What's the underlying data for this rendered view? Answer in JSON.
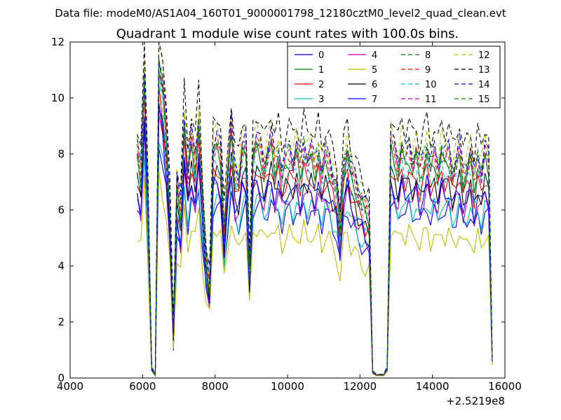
{
  "chart_data": {
    "type": "line",
    "suptitle": "Data file: modeM0/AS1A04_160T01_9000001798_12180cztM0_level2_quad_clean.evt",
    "title": "Quadrant 1 module wise count rates with 100.0s bins.",
    "xlabel": "",
    "ylabel": "",
    "x_offset_label": "+2.5219e8",
    "xlim": [
      4000,
      16000
    ],
    "ylim": [
      0,
      12
    ],
    "x_ticks": [
      4000,
      6000,
      8000,
      10000,
      12000,
      14000,
      16000
    ],
    "x_tick_labels": [
      "4000",
      "6000",
      "8000",
      "10000",
      "12000",
      "14000",
      "16000"
    ],
    "y_ticks": [
      0,
      2,
      4,
      6,
      8,
      10,
      12
    ],
    "y_tick_labels": [
      "0",
      "2",
      "4",
      "6",
      "8",
      "10",
      "12"
    ],
    "grid": false,
    "legend_position": "top-right",
    "legend_columns": 4,
    "x": [
      5850,
      5950,
      6050,
      6150,
      6250,
      6350,
      6450,
      6550,
      6650,
      6750,
      6850,
      6950,
      7050,
      7150,
      7250,
      7350,
      7450,
      7550,
      7650,
      7750,
      7850,
      7950,
      8050,
      8150,
      8250,
      8350,
      8450,
      8550,
      8650,
      8750,
      8850,
      8950,
      9050,
      9150,
      9250,
      9350,
      9450,
      9550,
      9650,
      9750,
      9850,
      9950,
      10050,
      10150,
      10250,
      10350,
      10450,
      10550,
      10650,
      10750,
      10850,
      10950,
      11050,
      11150,
      11250,
      11350,
      11450,
      11550,
      11650,
      11750,
      11850,
      11950,
      12050,
      12150,
      12250,
      12350,
      12450,
      12550,
      12650,
      12750,
      12850,
      12950,
      13050,
      13150,
      13250,
      13350,
      13450,
      13550,
      13650,
      13750,
      13850,
      13950,
      14050,
      14150,
      14250,
      14350,
      14450,
      14550,
      14650,
      14750,
      14850,
      14950,
      15050,
      15150,
      15250,
      15350,
      15450,
      15550,
      15650
    ],
    "base_profile": [
      6.8,
      6.2,
      9.2,
      5.5,
      0.3,
      0.1,
      9.6,
      8.8,
      7.5,
      5.2,
      1.5,
      5.8,
      5.0,
      7.8,
      6.2,
      7.2,
      6.5,
      7.8,
      5.5,
      3.6,
      2.8,
      6.9,
      7.1,
      6.8,
      4.5,
      6.2,
      7.5,
      6.2,
      6.0,
      6.9,
      7.0,
      3.2,
      6.8,
      7.1,
      6.9,
      6.4,
      6.8,
      7.2,
      6.5,
      6.9,
      6.2,
      6.6,
      6.8,
      6.5,
      6.9,
      6.3,
      7.0,
      6.6,
      6.8,
      6.4,
      6.9,
      6.2,
      6.7,
      6.5,
      6.1,
      5.8,
      4.6,
      6.4,
      6.9,
      6.2,
      6.0,
      5.6,
      5.4,
      5.1,
      5.0,
      0.2,
      0.1,
      0.1,
      0.1,
      0.3,
      7.1,
      6.8,
      6.4,
      7.0,
      6.6,
      6.9,
      6.5,
      6.8,
      6.2,
      6.6,
      7.0,
      6.4,
      6.7,
      6.3,
      6.9,
      6.6,
      6.8,
      6.2,
      6.5,
      6.9,
      6.1,
      6.4,
      6.7,
      5.9,
      6.6,
      6.2,
      6.8,
      6.5,
      0.6
    ],
    "series": [
      {
        "name": "0",
        "color": "#0000ff",
        "style": "solid",
        "scale": 0.88
      },
      {
        "name": "1",
        "color": "#008000",
        "style": "solid",
        "scale": 1.14
      },
      {
        "name": "2",
        "color": "#ff0000",
        "style": "solid",
        "scale": 1.06
      },
      {
        "name": "3",
        "color": "#00bfbf",
        "style": "solid",
        "scale": 0.91
      },
      {
        "name": "4",
        "color": "#bf00bf",
        "style": "solid",
        "scale": 0.96
      },
      {
        "name": "5",
        "color": "#bfbf00",
        "style": "solid",
        "scale": 0.76
      },
      {
        "name": "6",
        "color": "#000000",
        "style": "solid",
        "scale": 1.03
      },
      {
        "name": "7",
        "color": "#0000ff",
        "style": "solid",
        "scale": 0.99
      },
      {
        "name": "8",
        "color": "#008000",
        "style": "dashed",
        "scale": 1.2
      },
      {
        "name": "9",
        "color": "#ff0000",
        "style": "dashed",
        "scale": 1.18
      },
      {
        "name": "10",
        "color": "#00bfbf",
        "style": "dashed",
        "scale": 1.1
      },
      {
        "name": "11",
        "color": "#bf00bf",
        "style": "dashed",
        "scale": 1.17
      },
      {
        "name": "12",
        "color": "#bfbf00",
        "style": "dashed",
        "scale": 1.25
      },
      {
        "name": "13",
        "color": "#000000",
        "style": "dashed",
        "scale": 1.33
      },
      {
        "name": "14",
        "color": "#0000ff",
        "style": "dashed",
        "scale": 1.22
      },
      {
        "name": "15",
        "color": "#008000",
        "style": "dashed",
        "scale": 1.16
      }
    ]
  }
}
